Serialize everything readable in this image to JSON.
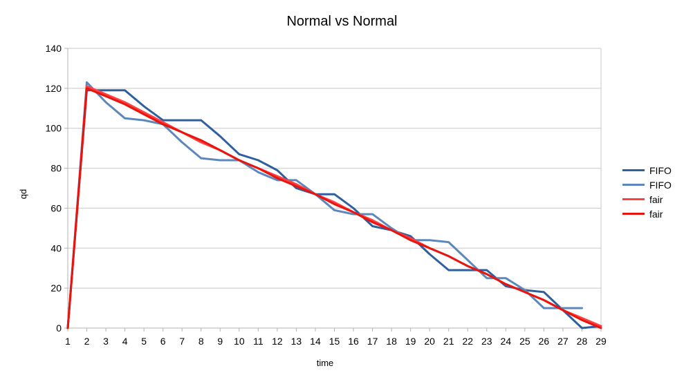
{
  "chart_data": {
    "type": "line",
    "title": "Normal vs Normal",
    "xlabel": "time",
    "ylabel": "qd",
    "x": [
      1,
      2,
      3,
      4,
      5,
      6,
      7,
      8,
      9,
      10,
      11,
      12,
      13,
      14,
      15,
      16,
      17,
      18,
      19,
      20,
      21,
      22,
      23,
      24,
      25,
      26,
      27,
      28,
      29
    ],
    "ylim": [
      0,
      140
    ],
    "yticks": [
      0,
      20,
      40,
      60,
      80,
      100,
      120,
      140
    ],
    "grid": true,
    "legend_position": "right",
    "series": [
      {
        "name": "FIFO",
        "color": "#2e5f9e",
        "values": [
          0,
          119,
          119,
          119,
          111,
          104,
          104,
          104,
          96,
          87,
          84,
          79,
          70,
          67,
          67,
          60,
          51,
          49,
          46,
          37,
          29,
          29,
          29,
          21,
          19,
          18,
          9,
          0,
          1
        ]
      },
      {
        "name": "FIFO",
        "color": "#5b87bd",
        "values": [
          0,
          123,
          113,
          105,
          104,
          102,
          93,
          85,
          84,
          84,
          78,
          74,
          74,
          67,
          59,
          57,
          57,
          50,
          44,
          44,
          43,
          34,
          25,
          25,
          19,
          10,
          10,
          10,
          null
        ]
      },
      {
        "name": "fair",
        "color": "#ff4040",
        "values": [
          0,
          121,
          117,
          113,
          108,
          103,
          98,
          93,
          89,
          84,
          80,
          76,
          72,
          67,
          63,
          58,
          54,
          49,
          45,
          40,
          36,
          31,
          27,
          22,
          18,
          14,
          9,
          5,
          1
        ]
      },
      {
        "name": "fair",
        "color": "#e8140e",
        "values": [
          0,
          120,
          116,
          112,
          107,
          102,
          98,
          94,
          89,
          84,
          80,
          75,
          71,
          67,
          62,
          58,
          53,
          49,
          44,
          40,
          36,
          31,
          27,
          22,
          18,
          14,
          9,
          4,
          0
        ]
      }
    ]
  }
}
